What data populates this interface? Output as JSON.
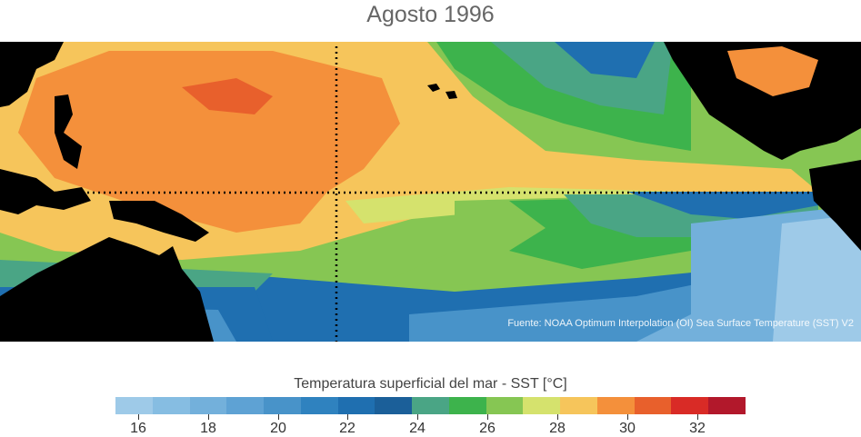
{
  "title": "Agosto 1996",
  "source_note": "Fuente: NOAA Optimum Interpolation (OI) Sea Surface Temperature (SST) V2",
  "colorbar": {
    "label": "Temperatura superficial del mar - SST  [°C]",
    "colors": [
      "#9ecae8",
      "#86bde2",
      "#73b0db",
      "#5ea2d4",
      "#4893c9",
      "#2f82bf",
      "#1f6fb0",
      "#1b5f99",
      "#4aa585",
      "#3db34c",
      "#86c653",
      "#d5e26d",
      "#f6c55b",
      "#f4903b",
      "#e8602c",
      "#d92b26",
      "#b2182b"
    ],
    "tick_labels": [
      "16",
      "18",
      "20",
      "22",
      "24",
      "26",
      "28",
      "30",
      "32"
    ]
  },
  "map": {
    "dotted_lines": [
      "Equator",
      "180° meridian"
    ],
    "palette": {
      "land": "#000000",
      "t16": "#9ecae8",
      "t18": "#73b0db",
      "t20": "#4893c9",
      "t22": "#1f6fb0",
      "t24": "#4aa585",
      "t25": "#3db34c",
      "t26": "#86c653",
      "t27": "#d5e26d",
      "t28": "#f6c55b",
      "t29": "#f4903b",
      "t30": "#e8602c"
    }
  }
}
